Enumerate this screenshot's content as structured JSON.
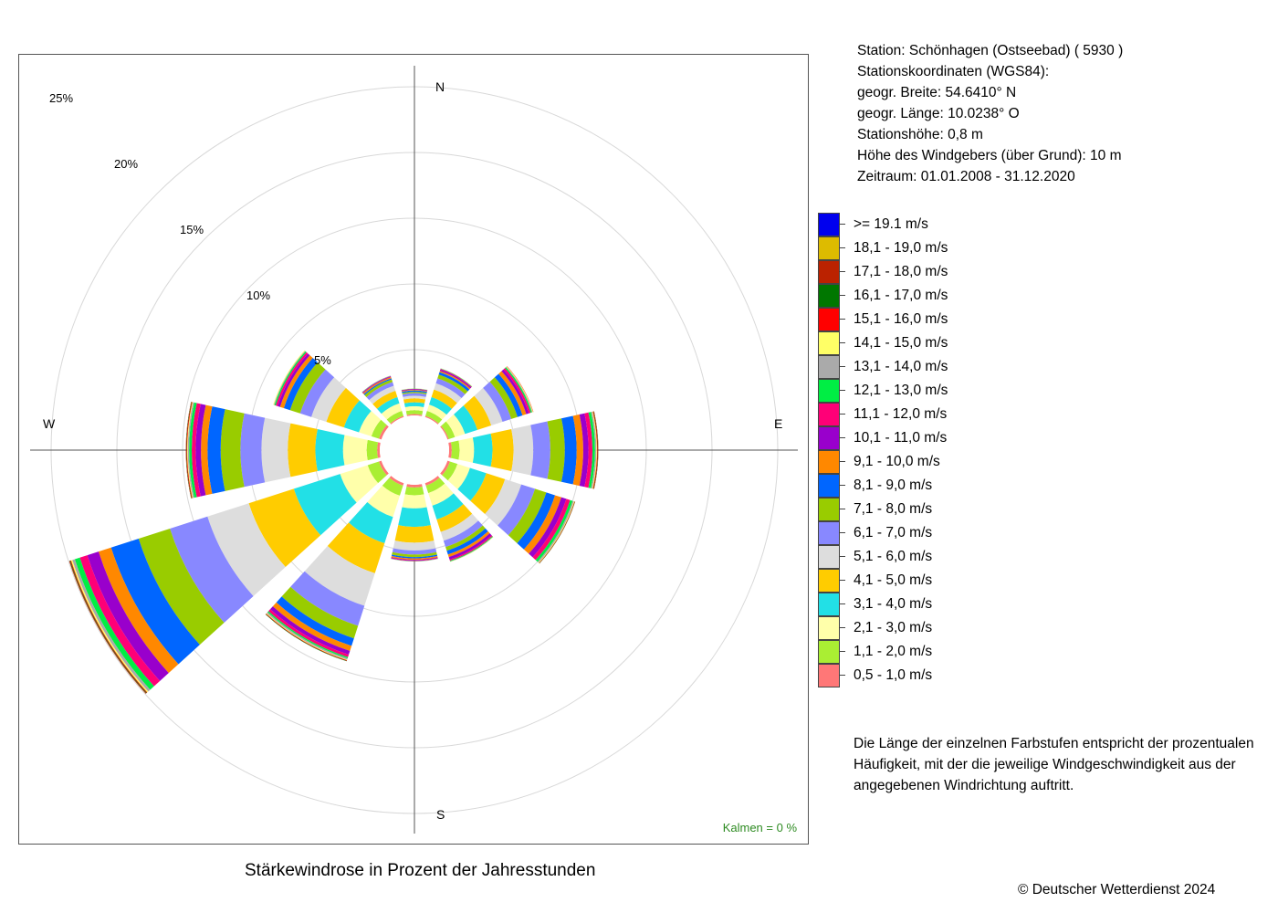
{
  "title": "Stärkewindrose in Prozent der Jahresstunden",
  "calm_label": "Kalmen  =  0 %",
  "copyright": "© Deutscher Wetterdienst  2024",
  "station": {
    "line1": "Station:  Schönhagen (Ostseebad)  ( 5930 )",
    "line2": "Stationskoordinaten (WGS84):",
    "line3": "geogr. Breite: 54.6410° N",
    "line4": "geogr. Länge: 10.0238° O",
    "line5": "Stationshöhe: 0,8 m",
    "line6": "Höhe des Windgebers (über Grund): 10 m",
    "line7": "Zeitraum: 01.01.2008 - 31.12.2020"
  },
  "note": "Die Länge der einzelnen Farbstufen entspricht der prozentualen Häufigkeit, mit der die jeweilige Windgeschwindigkeit aus der angegebenen Windrichtung auftritt.",
  "directions": {
    "n": "N",
    "e": "E",
    "s": "S",
    "w": "W"
  },
  "ring_labels": [
    "5%",
    "10%",
    "15%",
    "20%",
    "25%"
  ],
  "legend": [
    {
      "label": ">= 19.1 m/s",
      "color": "#0000ee"
    },
    {
      "label": "18,1 - 19,0 m/s",
      "color": "#ddbb00"
    },
    {
      "label": "17,1 - 18,0 m/s",
      "color": "#bb2200"
    },
    {
      "label": "16,1 - 17,0 m/s",
      "color": "#007700"
    },
    {
      "label": "15,1 - 16,0 m/s",
      "color": "#ff0000"
    },
    {
      "label": "14,1 - 15,0 m/s",
      "color": "#ffff66"
    },
    {
      "label": "13,1 - 14,0 m/s",
      "color": "#aaaaaa"
    },
    {
      "label": "12,1 - 13,0 m/s",
      "color": "#00ee44"
    },
    {
      "label": "11,1 - 12,0 m/s",
      "color": "#ff0077"
    },
    {
      "label": "10,1 - 11,0 m/s",
      "color": "#9900cc"
    },
    {
      "label": "9,1 - 10,0 m/s",
      "color": "#ff8800"
    },
    {
      "label": "8,1 - 9,0 m/s",
      "color": "#0066ff"
    },
    {
      "label": "7,1 - 8,0 m/s",
      "color": "#99cc00"
    },
    {
      "label": "6,1 - 7,0 m/s",
      "color": "#8888ff"
    },
    {
      "label": "5,1 - 6,0 m/s",
      "color": "#dddddd"
    },
    {
      "label": "4,1 - 5,0 m/s",
      "color": "#ffcc00"
    },
    {
      "label": "3,1 - 4,0 m/s",
      "color": "#22e0e6"
    },
    {
      "label": "2,1 - 3,0 m/s",
      "color": "#ffffaa"
    },
    {
      "label": "1,1 - 2,0 m/s",
      "color": "#aaee33"
    },
    {
      "label": "0,5 - 1,0 m/s",
      "color": "#ff7777"
    }
  ],
  "chart_data": {
    "type": "wind-rose",
    "title": "Stärkewindrose in Prozent der Jahresstunden",
    "unit": "%",
    "radial_ticks": [
      5,
      10,
      15,
      20,
      25
    ],
    "calm_percent": 0,
    "direction_step_deg": 30,
    "classes": [
      "0,5 - 1,0 m/s",
      "1,1 - 2,0 m/s",
      "2,1 - 3,0 m/s",
      "3,1 - 4,0 m/s",
      "4,1 - 5,0 m/s",
      "5,1 - 6,0 m/s",
      "6,1 - 7,0 m/s",
      "7,1 - 8,0 m/s",
      "8,1 - 9,0 m/s",
      "9,1 - 10,0 m/s",
      "10,1 - 11,0 m/s",
      "11,1 - 12,0 m/s",
      "12,1 - 13,0 m/s",
      "13,1 - 14,0 m/s",
      "14,1 - 15,0 m/s",
      "15,1 - 16,0 m/s",
      "16,1 - 17,0 m/s",
      "17,1 - 18,0 m/s",
      "18,1 - 19,0 m/s",
      ">= 19.1 m/s"
    ],
    "sectors": [
      {
        "direction_deg": 0,
        "values": [
          0.1,
          0.3,
          0.3,
          0.3,
          0.3,
          0.2,
          0.2,
          0.1,
          0.1,
          0.05,
          0.05,
          0.02,
          0.02,
          0.01,
          0.01,
          0,
          0,
          0,
          0,
          0
        ]
      },
      {
        "direction_deg": 30,
        "values": [
          0.1,
          0.4,
          0.5,
          0.6,
          0.6,
          0.5,
          0.4,
          0.3,
          0.2,
          0.1,
          0.1,
          0.05,
          0.03,
          0.02,
          0.01,
          0,
          0,
          0,
          0,
          0
        ]
      },
      {
        "direction_deg": 60,
        "values": [
          0.1,
          0.5,
          0.8,
          1.0,
          1.1,
          0.9,
          0.7,
          0.5,
          0.4,
          0.3,
          0.2,
          0.15,
          0.1,
          0.05,
          0.05,
          0.02,
          0,
          0,
          0,
          0
        ]
      },
      {
        "direction_deg": 90,
        "values": [
          0.2,
          0.6,
          1.1,
          1.4,
          1.6,
          1.5,
          1.3,
          1.1,
          0.9,
          0.5,
          0.4,
          0.3,
          0.2,
          0.1,
          0.05,
          0.05,
          0.03,
          0.02,
          0,
          0
        ]
      },
      {
        "direction_deg": 120,
        "values": [
          0.2,
          0.6,
          1.0,
          1.3,
          1.5,
          1.3,
          1.1,
          0.9,
          0.7,
          0.5,
          0.4,
          0.3,
          0.2,
          0.1,
          0.05,
          0.03,
          0.02,
          0.01,
          0,
          0
        ]
      },
      {
        "direction_deg": 150,
        "values": [
          0.2,
          0.6,
          1.0,
          1.1,
          1.0,
          0.7,
          0.5,
          0.3,
          0.3,
          0.2,
          0.2,
          0.1,
          0.05,
          0.03,
          0.02,
          0,
          0,
          0,
          0,
          0
        ]
      },
      {
        "direction_deg": 180,
        "values": [
          0.2,
          0.6,
          1.0,
          1.4,
          1.2,
          0.6,
          0.3,
          0.2,
          0.1,
          0.1,
          0.05,
          0.05,
          0.02,
          0.01,
          0,
          0,
          0,
          0,
          0,
          0
        ]
      },
      {
        "direction_deg": 210,
        "values": [
          0.2,
          0.8,
          1.7,
          2.1,
          2.4,
          2.6,
          1.6,
          1.0,
          0.6,
          0.4,
          0.3,
          0.2,
          0.1,
          0.1,
          0.05,
          0.05,
          0.03,
          0,
          0,
          0
        ]
      },
      {
        "direction_deg": 240,
        "values": [
          0.2,
          0.9,
          2.2,
          3.7,
          3.6,
          3.3,
          3.0,
          2.5,
          2.2,
          1.0,
          0.9,
          0.6,
          0.4,
          0.2,
          0.1,
          0.05,
          0.05,
          0.05,
          0,
          0
        ]
      },
      {
        "direction_deg": 270,
        "values": [
          0.2,
          0.8,
          1.8,
          2.1,
          2.1,
          2.0,
          1.6,
          1.5,
          1.0,
          0.5,
          0.4,
          0.3,
          0.2,
          0.1,
          0.05,
          0.05,
          0.03,
          0.02,
          0,
          0
        ]
      },
      {
        "direction_deg": 300,
        "values": [
          0.2,
          0.6,
          1.0,
          1.2,
          1.4,
          1.2,
          0.9,
          0.8,
          0.5,
          0.3,
          0.2,
          0.15,
          0.1,
          0.05,
          0.05,
          0,
          0,
          0,
          0,
          0
        ]
      },
      {
        "direction_deg": 330,
        "values": [
          0.1,
          0.4,
          0.6,
          0.5,
          0.5,
          0.4,
          0.3,
          0.2,
          0.1,
          0.1,
          0.05,
          0.03,
          0.02,
          0.01,
          0,
          0,
          0,
          0,
          0,
          0
        ]
      }
    ]
  }
}
